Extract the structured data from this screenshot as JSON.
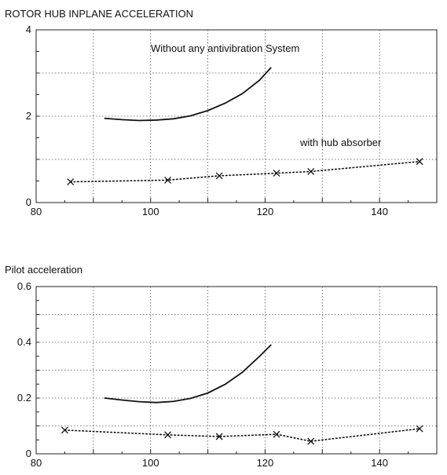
{
  "chart_data": [
    {
      "type": "line",
      "title": "ROTOR HUB INPLANE ACCELERATION",
      "xlim": [
        80,
        150
      ],
      "ylim": [
        0,
        4
      ],
      "xticks": [
        80,
        100,
        120,
        140
      ],
      "yticks": [
        0,
        2,
        4
      ],
      "grid": true,
      "annotations": [
        "Without any antivibration System",
        "with hub absorber"
      ],
      "series": [
        {
          "name": "Without any antivibration System",
          "style": "solid",
          "x": [
            92,
            95,
            98,
            101,
            104,
            107,
            110,
            113,
            116,
            119,
            121
          ],
          "y": [
            1.95,
            1.92,
            1.9,
            1.91,
            1.94,
            2.01,
            2.13,
            2.3,
            2.52,
            2.83,
            3.12
          ]
        },
        {
          "name": "with hub absorber",
          "style": "dotted",
          "marker": "x",
          "x": [
            86,
            103,
            112,
            122,
            128,
            147
          ],
          "y": [
            0.48,
            0.52,
            0.62,
            0.68,
            0.72,
            0.95
          ]
        }
      ]
    },
    {
      "type": "line",
      "title": "Pilot acceleration",
      "xlim": [
        80,
        150
      ],
      "ylim": [
        0,
        0.6
      ],
      "xticks": [
        80,
        100,
        120,
        140
      ],
      "yticks": [
        0,
        0.2,
        0.4,
        0.6
      ],
      "grid": true,
      "series": [
        {
          "style": "solid",
          "x": [
            92,
            95,
            98,
            101,
            104,
            107,
            110,
            113,
            116,
            119,
            121
          ],
          "y": [
            0.2,
            0.193,
            0.187,
            0.184,
            0.188,
            0.199,
            0.218,
            0.249,
            0.292,
            0.349,
            0.39
          ]
        },
        {
          "style": "dotted",
          "marker": "x",
          "x": [
            85,
            103,
            112,
            122,
            128,
            147
          ],
          "y": [
            0.085,
            0.068,
            0.062,
            0.07,
            0.045,
            0.09
          ]
        }
      ]
    }
  ]
}
